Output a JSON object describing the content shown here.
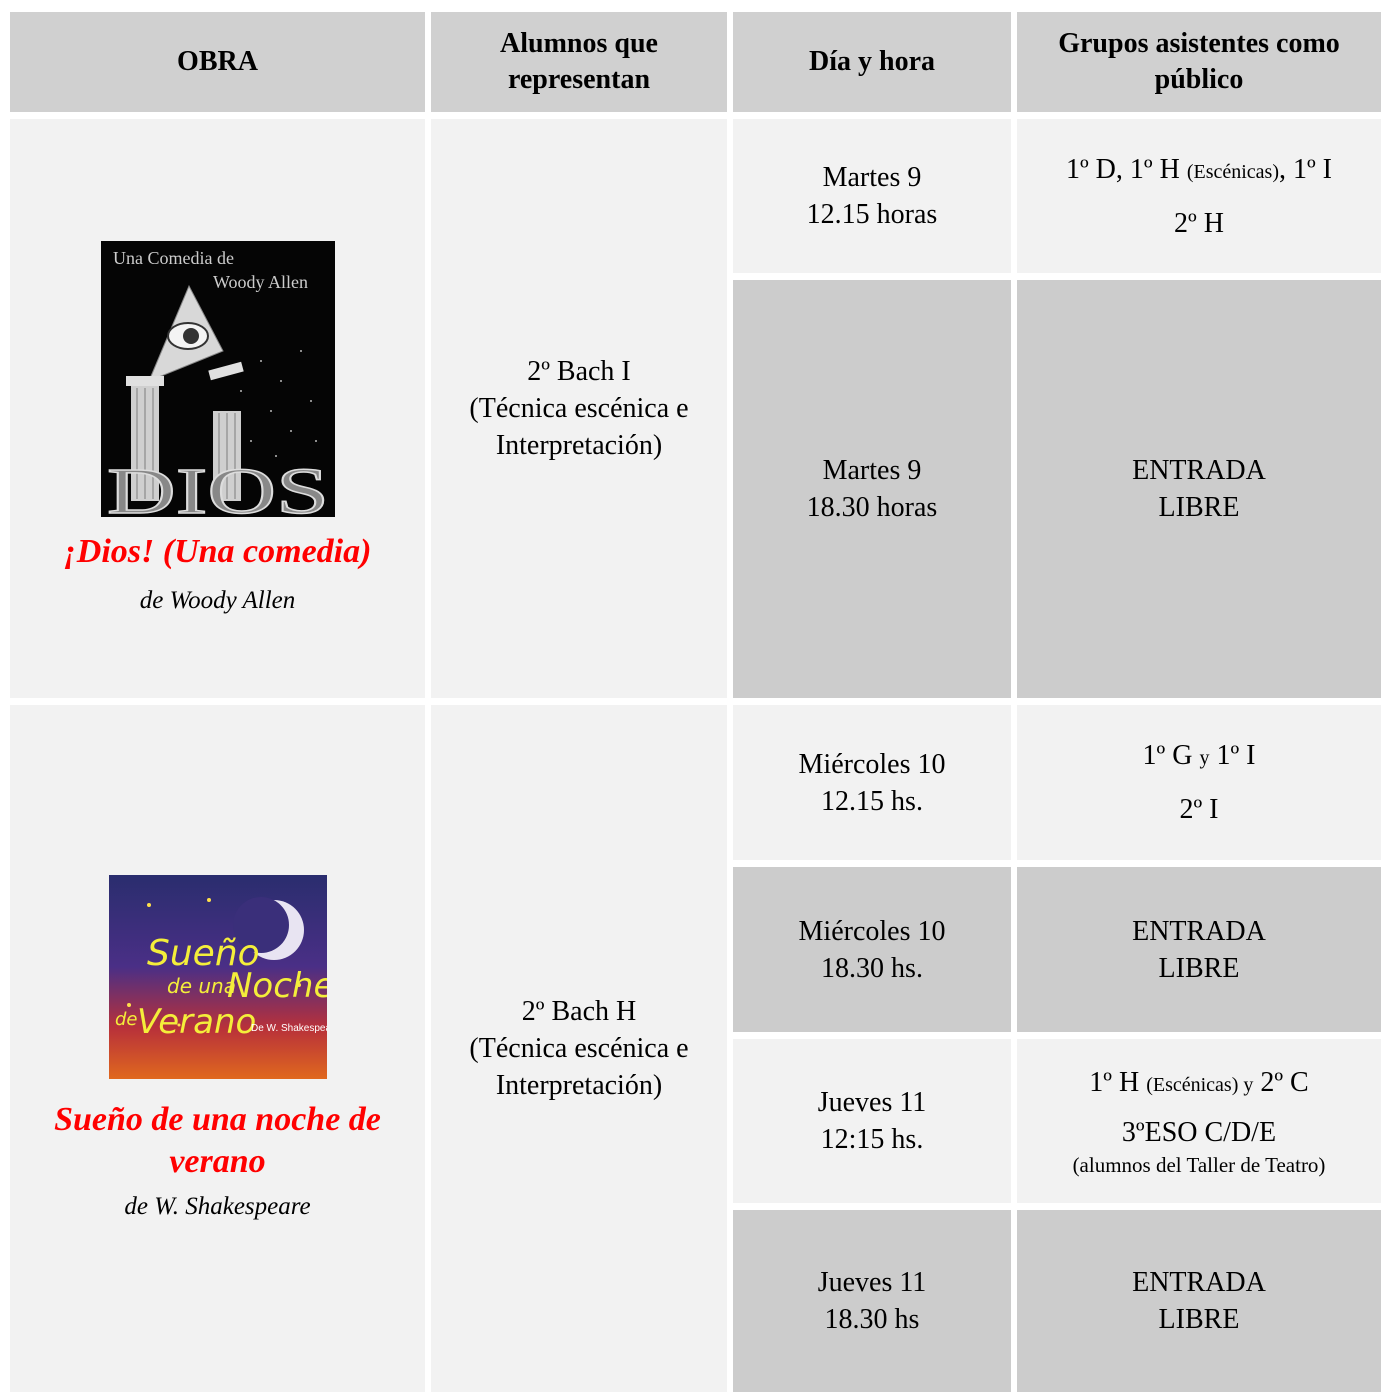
{
  "headers": {
    "obra": "OBRA",
    "alumnos": "Alumnos que representan",
    "dia_hora": "Día y hora",
    "grupos": "Grupos asistentes como público"
  },
  "plays": [
    {
      "poster_text": [
        "Una Comedia de",
        "Woody Allen",
        "DIOS"
      ],
      "title": "¡Dios! (Una comedia)",
      "author": "de Woody Allen",
      "students": [
        "2º Bach I",
        "(Técnica escénica e",
        "Interpretación)"
      ],
      "sessions": [
        {
          "day": "Martes 9",
          "time": "12.15 horas",
          "groups_line1": {
            "a": "1º D, 1º H ",
            "b": "(Escénicas)",
            "c": ", 1º I"
          },
          "groups_line2": "2º H"
        },
        {
          "day": "Martes 9",
          "time": "18.30 horas",
          "groups": [
            "ENTRADA",
            "LIBRE"
          ]
        }
      ]
    },
    {
      "poster_text": [
        "Sueño",
        "de una",
        "Noche",
        "de",
        "Verano",
        "De W. Shakespeare"
      ],
      "title": "Sueño de una noche de verano",
      "author": "de W. Shakespeare",
      "students": [
        "2º Bach H",
        "(Técnica escénica e",
        "Interpretación)"
      ],
      "sessions": [
        {
          "day": "Miércoles 10",
          "time": "12.15 hs.",
          "groups_line1": {
            "a": "1º G ",
            "b": "y",
            "c": " 1º I"
          },
          "groups_line2": "2º I"
        },
        {
          "day": "Miércoles 10",
          "time": "18.30 hs.",
          "groups": [
            "ENTRADA",
            "LIBRE"
          ]
        },
        {
          "day": "Jueves 11",
          "time": "12:15 hs.",
          "groups_line1": {
            "a": "1º H ",
            "b": "(Escénicas) y",
            "c": " 2º C"
          },
          "groups_line2": "3ºESO C/D/E",
          "groups_line3": "(alumnos del Taller de Teatro)"
        },
        {
          "day": "Jueves 11",
          "time": "18.30 hs",
          "groups": [
            "ENTRADA",
            "LIBRE"
          ]
        }
      ]
    }
  ]
}
